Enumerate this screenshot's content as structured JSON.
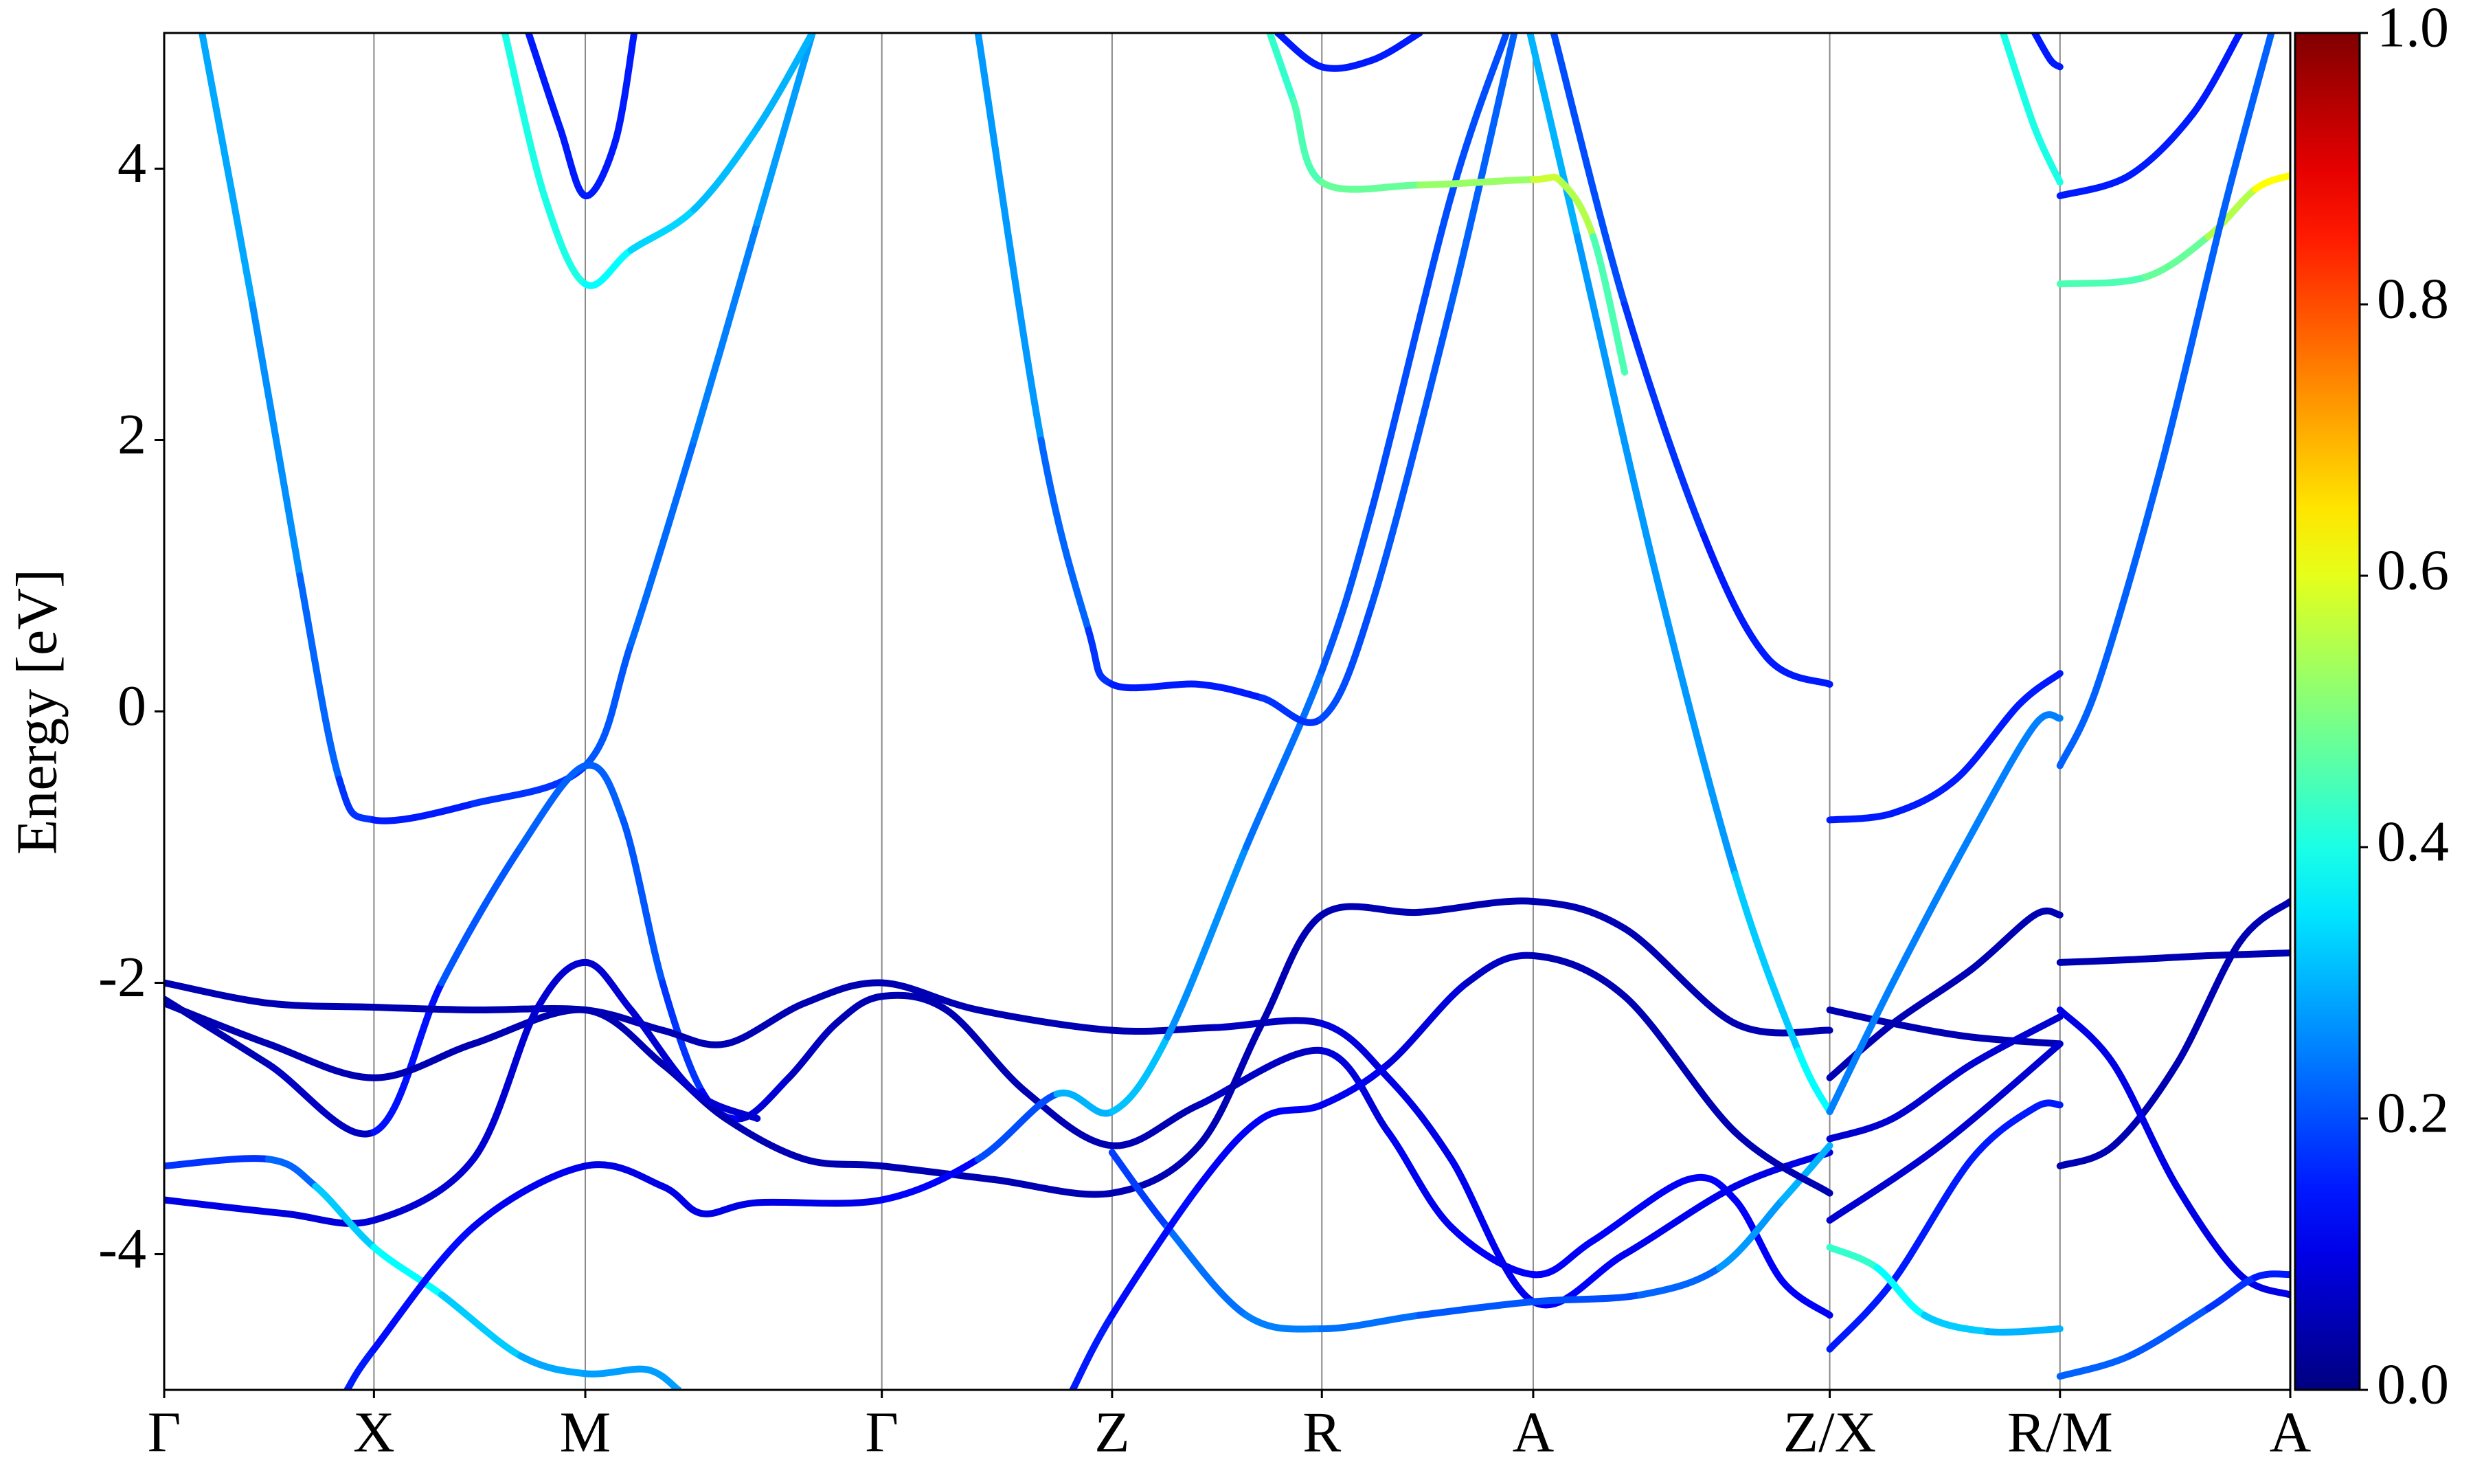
{
  "chart_data": {
    "type": "band-structure",
    "ylabel": "Energy [eV]",
    "xlim": [
      0,
      1348
    ],
    "ylim": [
      -5,
      5
    ],
    "xticks": [
      {
        "value": 0,
        "label": "Γ"
      },
      {
        "value": 133,
        "label": "X"
      },
      {
        "value": 267,
        "label": "M"
      },
      {
        "value": 455,
        "label": "Γ"
      },
      {
        "value": 601,
        "label": "Z"
      },
      {
        "value": 734,
        "label": "R"
      },
      {
        "value": 868,
        "label": "A"
      },
      {
        "value": 1056,
        "label": "Z/X"
      },
      {
        "value": 1202,
        "label": "R/M"
      },
      {
        "value": 1348,
        "label": "A"
      }
    ],
    "yticks": [
      -4,
      -2,
      0,
      2,
      4
    ],
    "grid": true,
    "colormap": "jet",
    "clim": [
      0,
      1
    ],
    "cticks": [
      {
        "value": 0,
        "label": "0.0"
      },
      0.2,
      0.4,
      0.6,
      0.8,
      {
        "value": 1,
        "label": "1.0"
      }
    ],
    "series": [
      {
        "x": [
          24,
          56,
          86,
          111,
          133,
          196,
          267,
          296,
          336,
          376,
          411
        ],
        "values": [
          5,
          3,
          1,
          -0.5,
          -0.8,
          -0.68,
          -0.4,
          0.5,
          2,
          3.6,
          5
        ],
        "weights": [
          0.3,
          0.28,
          0.25,
          0.2,
          0.15,
          0.15,
          0.2,
          0.22,
          0.24,
          0.26,
          0.3
        ]
      },
      {
        "x": [
          0,
          66,
          133,
          176,
          226,
          267,
          291,
          316,
          341,
          366,
          396,
          426,
          455,
          496,
          546,
          601,
          656,
          734,
          776,
          816,
          868,
          906,
          966,
          996,
          1026,
          1056
        ],
        "values": [
          -2.12,
          -2.6,
          -3.1,
          -2,
          -1,
          -0.4,
          -0.8,
          -2,
          -2.8,
          -3,
          -2.7,
          -2.3,
          -2.1,
          -2.2,
          -2.8,
          -3.2,
          -2.9,
          -2.5,
          -3.1,
          -3.8,
          -4.15,
          -3.9,
          -3.45,
          -3.6,
          -4.2,
          -4.45
        ],
        "weights": [
          0.05,
          0.05,
          0.08,
          0.2,
          0.22,
          0.22,
          0.22,
          0.2,
          0.15,
          0.1,
          0.07,
          0.05,
          0.05,
          0.05,
          0.05,
          0.05,
          0.05,
          0.08,
          0.1,
          0.12,
          0.12,
          0.12,
          0.12,
          0.12,
          0.12,
          0.12
        ]
      },
      {
        "x": [
          0,
          66,
          133,
          196,
          267,
          316,
          356,
          406,
          455,
          516,
          601,
          666,
          734,
          776,
          816,
          868,
          926,
          996,
          1056
        ],
        "values": [
          -2,
          -2.15,
          -2.18,
          -2.2,
          -2.2,
          -2.35,
          -2.45,
          -2.15,
          -2,
          -2.2,
          -2.35,
          -2.33,
          -2.3,
          -2.7,
          -3.3,
          -4.35,
          -4,
          -3.5,
          -3.25
        ],
        "weights": [
          0.05,
          0.05,
          0.05,
          0.05,
          0.05,
          0.05,
          0.05,
          0.05,
          0.05,
          0.05,
          0.05,
          0.05,
          0.08,
          0.1,
          0.1,
          0.12,
          0.12,
          0.1,
          0.1
        ]
      },
      {
        "x": [
          0,
          66,
          133,
          196,
          267,
          316,
          356,
          406,
          455,
          526,
          601,
          656,
          696,
          734,
          796,
          868,
          926,
          996,
          1056
        ],
        "values": [
          -2.15,
          -2.45,
          -2.7,
          -2.45,
          -2.2,
          -2.6,
          -3,
          -3.3,
          -3.35,
          -3.45,
          -3.55,
          -3.2,
          -2.3,
          -1.5,
          -1.48,
          -1.4,
          -1.6,
          -2.3,
          -2.35
        ],
        "weights": [
          0.05,
          0.05,
          0.05,
          0.05,
          0.05,
          0.05,
          0.05,
          0.05,
          0.05,
          0.05,
          0.05,
          0.05,
          0.05,
          0.05,
          0.05,
          0.05,
          0.05,
          0.05,
          0.05
        ]
      },
      {
        "x": [
          0,
          76,
          133,
          196,
          236,
          267,
          296,
          336,
          376
        ],
        "values": [
          -3.6,
          -3.7,
          -3.75,
          -3.3,
          -2.2,
          -1.85,
          -2.2,
          -2.8,
          -3
        ],
        "weights": [
          0.1,
          0.1,
          0.08,
          0.08,
          0.08,
          0.08,
          0.08,
          0.08,
          0.08
        ]
      },
      {
        "x": [
          0,
          66,
          96,
          133,
          176,
          226,
          267,
          306,
          326
        ],
        "values": [
          -3.35,
          -3.3,
          -3.5,
          -3.95,
          -4.3,
          -4.75,
          -4.88,
          -4.85,
          -5
        ],
        "weights": [
          0.15,
          0.2,
          0.25,
          0.4,
          0.35,
          0.3,
          0.28,
          0.28,
          0.28
        ]
      },
      {
        "x": [
          116,
          133,
          196,
          267,
          316,
          341,
          376,
          455,
          516,
          566,
          601,
          636,
          686,
          734,
          766,
          816,
          851
        ],
        "values": [
          -5,
          -4.7,
          -3.8,
          -3.35,
          -3.5,
          -3.7,
          -3.62,
          -3.6,
          -3.3,
          -2.82,
          -2.95,
          -2.4,
          -1,
          0.3,
          1.5,
          3.8,
          5
        ],
        "weights": [
          0.15,
          0.15,
          0.12,
          0.1,
          0.1,
          0.1,
          0.1,
          0.1,
          0.15,
          0.25,
          0.35,
          0.28,
          0.25,
          0.22,
          0.2,
          0.2,
          0.2
        ]
      },
      {
        "x": [
          516,
          556,
          586,
          601,
          656,
          696,
          734,
          766,
          816,
          856
        ],
        "values": [
          5,
          2,
          0.6,
          0.2,
          0.2,
          0.1,
          -0.05,
          0.8,
          3,
          5
        ],
        "weights": [
          0.3,
          0.25,
          0.2,
          0.15,
          0.15,
          0.15,
          0.2,
          0.2,
          0.22,
          0.22
        ]
      },
      {
        "x": [
          601,
          636,
          686,
          734,
          796,
          868,
          936,
          986,
          1026,
          1056
        ],
        "values": [
          -3.25,
          -3.8,
          -4.45,
          -4.55,
          -4.45,
          -4.35,
          -4.3,
          -4.1,
          -3.6,
          -3.2
        ],
        "weights": [
          0.15,
          0.22,
          0.25,
          0.25,
          0.22,
          0.2,
          0.2,
          0.25,
          0.3,
          0.3
        ]
      },
      {
        "x": [
          576,
          601,
          656,
          696,
          734,
          776,
          826,
          868,
          926,
          996,
          1056
        ],
        "values": [
          -5,
          -4.45,
          -3.5,
          -3,
          -2.9,
          -2.6,
          -2,
          -1.8,
          -2.1,
          -3.1,
          -3.55
        ],
        "weights": [
          0.15,
          0.15,
          0.12,
          0.12,
          0.12,
          0.1,
          0.08,
          0.05,
          0.05,
          0.05,
          0.05
        ]
      },
      {
        "x": [
          881,
          926,
          976,
          1016,
          1056
        ],
        "values": [
          5,
          3,
          1.3,
          0.4,
          0.2
        ],
        "weights": [
          0.2,
          0.2,
          0.15,
          0.15,
          0.15
        ]
      },
      {
        "x": [
          866,
          896,
          946,
          996,
          1036,
          1056
        ],
        "values": [
          5,
          3.5,
          1,
          -1.2,
          -2.5,
          -2.95
        ],
        "weights": [
          0.3,
          0.3,
          0.25,
          0.3,
          0.35,
          0.4
        ]
      },
      {
        "x": [
          701,
          716,
          734,
          796,
          868,
          886,
          906,
          926
        ],
        "values": [
          5,
          4.5,
          3.9,
          3.88,
          3.92,
          3.9,
          3.5,
          2.5
        ],
        "weights": [
          0.4,
          0.45,
          0.45,
          0.5,
          0.55,
          0.6,
          0.5,
          0.4
        ]
      },
      {
        "x": [
          706,
          734,
          766,
          796
        ],
        "values": [
          5,
          4.75,
          4.8,
          5
        ],
        "weights": [
          0.15,
          0.15,
          0.15,
          0.15
        ]
      },
      {
        "x": [
          231,
          251,
          267,
          286,
          298
        ],
        "values": [
          5,
          4.3,
          3.8,
          4.2,
          5
        ],
        "weights": [
          0.15,
          0.15,
          0.15,
          0.15,
          0.15
        ]
      },
      {
        "x": [
          216,
          241,
          267,
          296,
          336,
          376,
          411
        ],
        "values": [
          5,
          3.8,
          3.15,
          3.4,
          3.7,
          4.3,
          5
        ],
        "weights": [
          0.4,
          0.4,
          0.4,
          0.35,
          0.32,
          0.3,
          0.3
        ]
      },
      {
        "x": [
          1056,
          1096,
          1136,
          1176,
          1202
        ],
        "values": [
          -0.8,
          -0.75,
          -0.5,
          0.05,
          0.28
        ],
        "weights": [
          0.15,
          0.15,
          0.15,
          0.15,
          0.15
        ]
      },
      {
        "x": [
          1056,
          1096,
          1146,
          1186,
          1202
        ],
        "values": [
          -2.7,
          -2.3,
          -1.9,
          -1.5,
          -1.5
        ],
        "weights": [
          0.05,
          0.05,
          0.05,
          0.05,
          0.05
        ]
      },
      {
        "x": [
          1056,
          1096,
          1146,
          1202
        ],
        "values": [
          -2.2,
          -2.3,
          -2.4,
          -2.45
        ],
        "weights": [
          0.05,
          0.05,
          0.05,
          0.05
        ]
      },
      {
        "x": [
          1056,
          1096,
          1146,
          1202
        ],
        "values": [
          -3.15,
          -3,
          -2.6,
          -2.25
        ],
        "weights": [
          0.08,
          0.08,
          0.08,
          0.08
        ]
      },
      {
        "x": [
          1056,
          1126,
          1202
        ],
        "values": [
          -3.75,
          -3.2,
          -2.45
        ],
        "weights": [
          0.08,
          0.08,
          0.08
        ]
      },
      {
        "x": [
          1056,
          1096,
          1146,
          1186,
          1202
        ],
        "values": [
          -4.7,
          -4.2,
          -3.3,
          -2.92,
          -2.9
        ],
        "weights": [
          0.15,
          0.15,
          0.15,
          0.15,
          0.15
        ]
      },
      {
        "x": [
          1056,
          1096,
          1146,
          1186,
          1202
        ],
        "values": [
          -2.95,
          -2,
          -0.9,
          -0.1,
          -0.05
        ],
        "weights": [
          0.25,
          0.25,
          0.25,
          0.25,
          0.25
        ]
      },
      {
        "x": [
          1056,
          1086,
          1116,
          1156,
          1202
        ],
        "values": [
          -3.95,
          -4.1,
          -4.45,
          -4.57,
          -4.55
        ],
        "weights": [
          0.45,
          0.4,
          0.35,
          0.3,
          0.3
        ]
      },
      {
        "x": [
          1166,
          1186,
          1202
        ],
        "values": [
          5,
          4.3,
          3.9
        ],
        "weights": [
          0.4,
          0.4,
          0.4
        ]
      },
      {
        "x": [
          1186,
          1196,
          1202
        ],
        "values": [
          5,
          4.8,
          4.75
        ],
        "weights": [
          0.15,
          0.15,
          0.15
        ]
      },
      {
        "x": [
          1202,
          1246,
          1286,
          1316
        ],
        "values": [
          3.8,
          3.95,
          4.4,
          5
        ],
        "weights": [
          0.15,
          0.15,
          0.15,
          0.15
        ]
      },
      {
        "x": [
          1202,
          1256,
          1296,
          1326,
          1348
        ],
        "values": [
          3.15,
          3.2,
          3.5,
          3.85,
          3.95
        ],
        "weights": [
          0.45,
          0.45,
          0.5,
          0.6,
          0.65
        ]
      },
      {
        "x": [
          1202,
          1226,
          1266,
          1306,
          1336
        ],
        "values": [
          -0.4,
          0.2,
          1.8,
          3.7,
          5
        ],
        "weights": [
          0.22,
          0.22,
          0.22,
          0.22,
          0.22
        ]
      },
      {
        "x": [
          1202,
          1246,
          1296,
          1348
        ],
        "values": [
          -1.85,
          -1.83,
          -1.8,
          -1.78
        ],
        "weights": [
          0.05,
          0.05,
          0.05,
          0.05
        ]
      },
      {
        "x": [
          1202,
          1236,
          1276,
          1316,
          1348
        ],
        "values": [
          -3.35,
          -3.2,
          -2.6,
          -1.7,
          -1.4
        ],
        "weights": [
          0.05,
          0.05,
          0.05,
          0.05,
          0.05
        ]
      },
      {
        "x": [
          1202,
          1236,
          1276,
          1316,
          1348
        ],
        "values": [
          -2.2,
          -2.6,
          -3.5,
          -4.15,
          -4.3
        ],
        "weights": [
          0.1,
          0.1,
          0.1,
          0.1,
          0.1
        ]
      },
      {
        "x": [
          1202,
          1246,
          1296,
          1326,
          1348
        ],
        "values": [
          -4.9,
          -4.75,
          -4.4,
          -4.17,
          -4.15
        ],
        "weights": [
          0.22,
          0.22,
          0.2,
          0.15,
          0.15
        ]
      }
    ]
  }
}
